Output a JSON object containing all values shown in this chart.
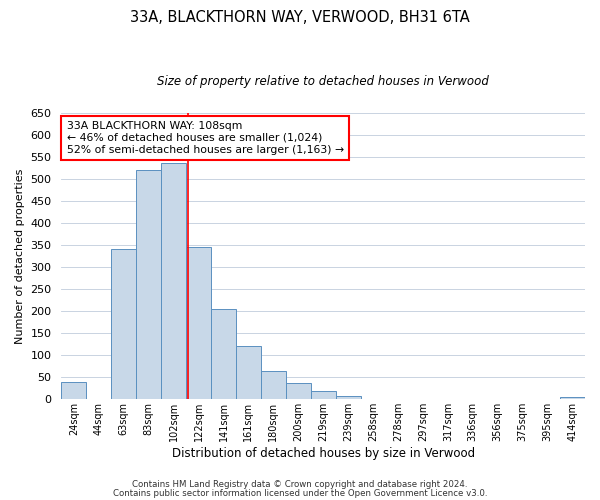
{
  "title": "33A, BLACKTHORN WAY, VERWOOD, BH31 6TA",
  "subtitle": "Size of property relative to detached houses in Verwood",
  "xlabel": "Distribution of detached houses by size in Verwood",
  "ylabel": "Number of detached properties",
  "bin_labels": [
    "24sqm",
    "44sqm",
    "63sqm",
    "83sqm",
    "102sqm",
    "122sqm",
    "141sqm",
    "161sqm",
    "180sqm",
    "200sqm",
    "219sqm",
    "239sqm",
    "258sqm",
    "278sqm",
    "297sqm",
    "317sqm",
    "336sqm",
    "356sqm",
    "375sqm",
    "395sqm",
    "414sqm"
  ],
  "bar_heights": [
    40,
    0,
    340,
    520,
    535,
    345,
    205,
    120,
    65,
    38,
    18,
    8,
    0,
    0,
    0,
    0,
    0,
    0,
    0,
    0,
    5
  ],
  "bar_color": "#c8d8e8",
  "bar_edge_color": "#5a90c0",
  "red_line_x": 4.58,
  "ylim": [
    0,
    650
  ],
  "yticks": [
    0,
    50,
    100,
    150,
    200,
    250,
    300,
    350,
    400,
    450,
    500,
    550,
    600,
    650
  ],
  "annotation_title": "33A BLACKTHORN WAY: 108sqm",
  "annotation_line1": "← 46% of detached houses are smaller (1,024)",
  "annotation_line2": "52% of semi-detached houses are larger (1,163) →",
  "footer_line1": "Contains HM Land Registry data © Crown copyright and database right 2024.",
  "footer_line2": "Contains public sector information licensed under the Open Government Licence v3.0.",
  "background_color": "#ffffff",
  "grid_color": "#c0ccdc"
}
